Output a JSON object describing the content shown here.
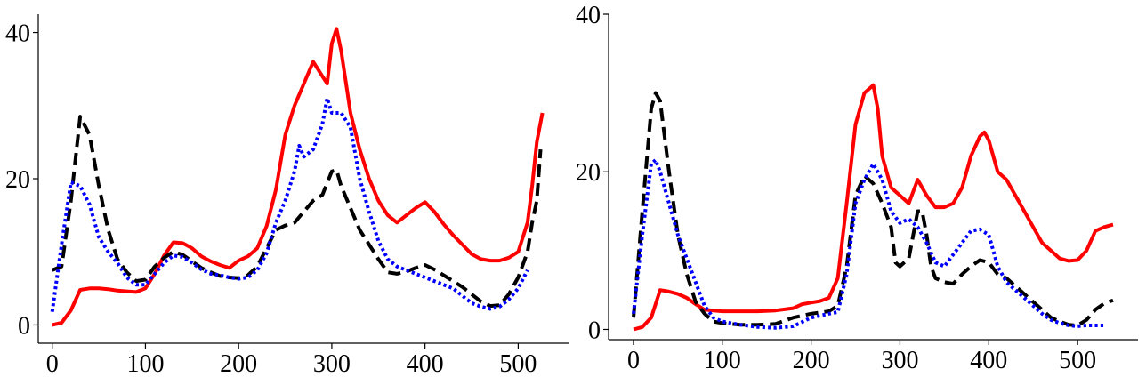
{
  "chart_data": [
    {
      "type": "line",
      "xlim": [
        -15,
        555
      ],
      "ylim": [
        -2.5,
        42.5
      ],
      "xticks": [
        0,
        100,
        200,
        300,
        400,
        500
      ],
      "yticks": [
        0,
        20,
        40
      ],
      "xtick_labels": [
        "0",
        "100",
        "200",
        "300",
        "400",
        "500"
      ],
      "ytick_labels": [
        "0",
        "20",
        "40"
      ],
      "grid": false,
      "legend": "none",
      "series": [
        {
          "color": "#ff0000",
          "style": "solid",
          "x": [
            0,
            10,
            20,
            30,
            40,
            50,
            60,
            70,
            80,
            90,
            100,
            110,
            120,
            130,
            140,
            150,
            160,
            170,
            180,
            190,
            200,
            210,
            220,
            230,
            240,
            250,
            260,
            270,
            280,
            290,
            295,
            300,
            305,
            310,
            320,
            330,
            340,
            350,
            360,
            370,
            380,
            390,
            400,
            410,
            420,
            430,
            440,
            450,
            460,
            470,
            480,
            490,
            500,
            510,
            515,
            520,
            526
          ],
          "y": [
            0,
            0.3,
            2.0,
            4.8,
            5.0,
            5.0,
            4.9,
            4.7,
            4.6,
            4.5,
            5.0,
            7.0,
            9.5,
            11.3,
            11.2,
            10.5,
            9.4,
            8.7,
            8.2,
            7.8,
            8.8,
            9.4,
            10.5,
            13.5,
            18.5,
            26.0,
            30.0,
            33.0,
            36.0,
            34.0,
            33.0,
            38.5,
            40.5,
            37.5,
            29.0,
            24.0,
            20.0,
            17.0,
            15.0,
            14.0,
            15.0,
            16.0,
            16.8,
            15.5,
            13.8,
            12.3,
            11.0,
            9.7,
            9.0,
            8.8,
            8.8,
            9.2,
            10.0,
            14.0,
            19.0,
            25.0,
            29.0
          ]
        },
        {
          "color": "#000000",
          "style": "dashed",
          "x": [
            0,
            10,
            20,
            30,
            40,
            50,
            60,
            70,
            80,
            90,
            100,
            110,
            120,
            130,
            140,
            150,
            160,
            170,
            180,
            190,
            200,
            210,
            220,
            230,
            240,
            250,
            260,
            270,
            280,
            290,
            300,
            305,
            310,
            320,
            330,
            340,
            350,
            360,
            370,
            380,
            390,
            400,
            410,
            420,
            430,
            440,
            450,
            460,
            470,
            480,
            490,
            500,
            510,
            515,
            520,
            524
          ],
          "y": [
            7.5,
            8.0,
            17.0,
            28.5,
            26.0,
            19.0,
            13.0,
            9.0,
            7.2,
            6.0,
            6.2,
            8.0,
            9.2,
            10.0,
            9.6,
            8.7,
            7.8,
            7.2,
            6.7,
            6.5,
            6.4,
            6.8,
            8.0,
            10.5,
            13.0,
            13.6,
            14.0,
            15.5,
            17.0,
            17.8,
            21.0,
            21.2,
            19.0,
            16.0,
            13.0,
            11.0,
            9.0,
            7.2,
            7.0,
            7.3,
            7.8,
            8.2,
            7.6,
            6.8,
            6.0,
            5.2,
            4.2,
            3.2,
            2.6,
            2.7,
            4.2,
            6.5,
            10.0,
            14.0,
            17.0,
            24.0
          ]
        },
        {
          "color": "#0000ff",
          "style": "dotted",
          "x": [
            0,
            10,
            20,
            30,
            40,
            50,
            60,
            70,
            80,
            90,
            100,
            110,
            120,
            130,
            140,
            150,
            160,
            170,
            180,
            190,
            200,
            210,
            220,
            230,
            240,
            250,
            260,
            265,
            270,
            280,
            290,
            295,
            300,
            310,
            320,
            330,
            340,
            350,
            360,
            370,
            380,
            390,
            400,
            410,
            420,
            430,
            440,
            450,
            460,
            470,
            480,
            490,
            500,
            510
          ],
          "y": [
            1.8,
            11.0,
            19.5,
            19.0,
            16.5,
            12.0,
            10.0,
            8.5,
            6.5,
            5.5,
            5.5,
            7.0,
            8.5,
            9.5,
            9.3,
            8.5,
            7.6,
            7.0,
            6.8,
            6.5,
            6.3,
            6.5,
            7.5,
            9.8,
            14.0,
            17.0,
            21.0,
            24.5,
            23.0,
            24.0,
            27.5,
            31.0,
            29.0,
            29.0,
            27.0,
            20.0,
            15.5,
            11.5,
            9.0,
            8.0,
            7.5,
            7.0,
            6.5,
            6.0,
            5.5,
            5.0,
            4.0,
            3.0,
            2.5,
            2.2,
            2.5,
            3.5,
            5.0,
            7.5
          ]
        }
      ]
    },
    {
      "type": "line",
      "xlim": [
        -28,
        568
      ],
      "ylim": [
        -1.3,
        40
      ],
      "xticks": [
        0,
        100,
        200,
        300,
        400,
        500
      ],
      "yticks": [
        0,
        20,
        40
      ],
      "xtick_labels": [
        "0",
        "100",
        "200",
        "300",
        "400",
        "500"
      ],
      "ytick_labels": [
        "0",
        "20",
        "40"
      ],
      "grid": false,
      "legend": "none",
      "series": [
        {
          "color": "#ff0000",
          "style": "solid",
          "x": [
            0,
            10,
            20,
            30,
            40,
            50,
            60,
            70,
            80,
            90,
            100,
            120,
            140,
            160,
            180,
            190,
            200,
            210,
            220,
            230,
            240,
            250,
            260,
            270,
            275,
            280,
            290,
            300,
            310,
            320,
            325,
            330,
            340,
            350,
            360,
            370,
            380,
            390,
            395,
            400,
            410,
            420,
            430,
            440,
            450,
            460,
            470,
            480,
            490,
            500,
            510,
            520,
            530,
            540
          ],
          "y": [
            0,
            0.3,
            1.5,
            5.0,
            4.8,
            4.5,
            4.0,
            3.2,
            2.5,
            2.4,
            2.3,
            2.3,
            2.3,
            2.4,
            2.7,
            3.2,
            3.4,
            3.6,
            4.0,
            6.5,
            16.0,
            26.0,
            30.0,
            31.0,
            28.0,
            22.0,
            18.0,
            17.0,
            16.0,
            19.0,
            18.0,
            17.0,
            15.5,
            15.5,
            16.0,
            18.0,
            22.0,
            24.5,
            25.0,
            24.0,
            20.0,
            19.0,
            17.0,
            15.0,
            13.0,
            11.0,
            10.0,
            9.0,
            8.7,
            8.8,
            10.0,
            12.5,
            13.0,
            13.3
          ]
        },
        {
          "color": "#000000",
          "style": "dashed",
          "x": [
            0,
            10,
            20,
            25,
            30,
            40,
            50,
            60,
            70,
            80,
            90,
            100,
            120,
            140,
            160,
            180,
            200,
            220,
            230,
            240,
            250,
            260,
            270,
            280,
            290,
            295,
            300,
            310,
            320,
            325,
            330,
            335,
            340,
            350,
            360,
            370,
            380,
            390,
            400,
            410,
            420,
            430,
            440,
            450,
            460,
            470,
            480,
            490,
            500,
            510,
            520,
            530,
            540
          ],
          "y": [
            1.5,
            15.0,
            28.0,
            30.0,
            29.0,
            20.0,
            12.0,
            7.0,
            3.5,
            2.0,
            1.0,
            0.8,
            0.6,
            0.6,
            0.7,
            1.5,
            2.0,
            2.3,
            3.0,
            8.0,
            17.0,
            19.5,
            18.5,
            16.0,
            13.0,
            8.5,
            8.0,
            9.0,
            15.0,
            15.0,
            12.0,
            8.0,
            6.5,
            6.0,
            5.8,
            7.0,
            8.0,
            8.8,
            8.5,
            7.0,
            6.5,
            5.5,
            4.5,
            3.5,
            2.5,
            1.5,
            1.0,
            0.6,
            0.5,
            1.2,
            2.5,
            3.3,
            3.7
          ]
        },
        {
          "color": "#0000ff",
          "style": "dotted",
          "x": [
            0,
            10,
            20,
            25,
            30,
            40,
            50,
            60,
            70,
            80,
            90,
            100,
            120,
            140,
            160,
            180,
            200,
            220,
            230,
            240,
            250,
            260,
            270,
            280,
            290,
            300,
            310,
            320,
            330,
            340,
            350,
            360,
            370,
            380,
            390,
            400,
            410,
            420,
            430,
            440,
            450,
            460,
            470,
            480,
            490,
            500,
            510,
            520,
            530
          ],
          "y": [
            2.0,
            12.0,
            21.0,
            21.5,
            20.0,
            16.0,
            12.0,
            9.0,
            6.0,
            3.0,
            1.5,
            1.0,
            0.6,
            0.3,
            0.2,
            0.4,
            1.5,
            2.0,
            2.2,
            7.0,
            16.0,
            19.0,
            21.0,
            19.0,
            15.0,
            13.5,
            14.0,
            13.0,
            11.0,
            8.5,
            8.0,
            9.5,
            11.0,
            12.5,
            12.7,
            12.0,
            8.0,
            6.0,
            5.0,
            4.0,
            3.0,
            2.0,
            1.2,
            0.8,
            0.5,
            0.4,
            0.5,
            0.5,
            0.5
          ]
        }
      ]
    }
  ]
}
